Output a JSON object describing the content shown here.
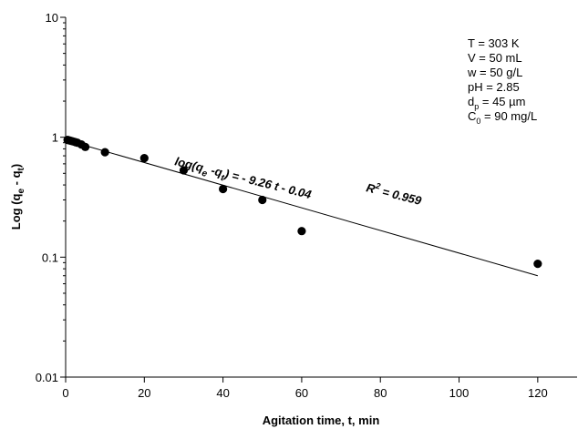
{
  "chart_data": {
    "type": "scatter",
    "xlabel": "Agitation time, t, min",
    "ylabel": "Log (qₑ - qₜ)",
    "ylabel_parts": {
      "pre": "Log (q",
      "sub1": "e",
      "mid": " - q",
      "sub2": "t",
      "post": ")"
    },
    "xlim": [
      0,
      130
    ],
    "ylim": [
      0.01,
      10
    ],
    "yscale": "log",
    "grid": false,
    "x_ticks": [
      0,
      20,
      40,
      60,
      80,
      100,
      120
    ],
    "x_tick_labels": [
      "0",
      "20",
      "40",
      "60",
      "80",
      "100",
      "120"
    ],
    "y_ticks": [
      0.01,
      0.1,
      1,
      10
    ],
    "y_tick_labels": [
      "0.01",
      "0.1",
      "1",
      "10"
    ],
    "series": [
      {
        "marker": "filled-circle",
        "color": "#000000",
        "points": [
          {
            "x": 0.5,
            "y": 0.95
          },
          {
            "x": 1,
            "y": 0.94
          },
          {
            "x": 1.5,
            "y": 0.93
          },
          {
            "x": 2,
            "y": 0.92
          },
          {
            "x": 2.5,
            "y": 0.91
          },
          {
            "x": 3,
            "y": 0.9
          },
          {
            "x": 4,
            "y": 0.87
          },
          {
            "x": 5,
            "y": 0.83
          },
          {
            "x": 10,
            "y": 0.75
          },
          {
            "x": 20,
            "y": 0.67
          },
          {
            "x": 30,
            "y": 0.53
          },
          {
            "x": 40,
            "y": 0.37
          },
          {
            "x": 50,
            "y": 0.3
          },
          {
            "x": 60,
            "y": 0.165
          },
          {
            "x": 120,
            "y": 0.088
          }
        ]
      }
    ],
    "fit_line": {
      "x_start": 0,
      "y_start": 0.95,
      "x_end": 120,
      "y_end": 0.07
    },
    "equation": {
      "pre": "log(q",
      "sub1": "e",
      "mid": " -q",
      "sub2": "t",
      "post": ") = - 9.26 t - 0.04"
    },
    "r_squared": {
      "pre": "R",
      "sup": "2",
      "post": " = 0.959"
    },
    "conditions": [
      {
        "pre": "T = 303 K",
        "sub": "",
        "post": ""
      },
      {
        "pre": "V = 50 mL",
        "sub": "",
        "post": ""
      },
      {
        "pre": "w = 50 g/L",
        "sub": "",
        "post": ""
      },
      {
        "pre": "pH = 2.85",
        "sub": "",
        "post": ""
      },
      {
        "pre": "d",
        "sub": "p",
        "post": " = 45  µm"
      },
      {
        "pre": "C",
        "sub": "0",
        "post": " = 90 mg/L"
      }
    ]
  }
}
